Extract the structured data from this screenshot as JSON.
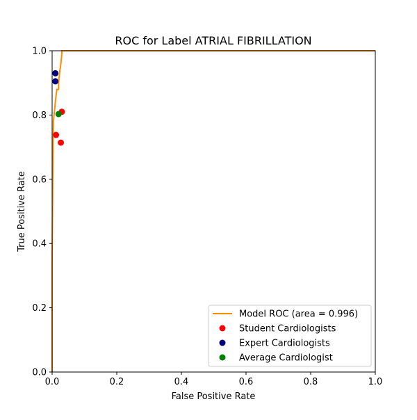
{
  "chart_data": {
    "type": "line",
    "title": "ROC for Label ATRIAL FIBRILLATION",
    "xlabel": "False Positive Rate",
    "ylabel": "True Positive Rate",
    "xlim": [
      0.0,
      1.0
    ],
    "ylim": [
      0.0,
      1.0
    ],
    "xticks": [
      "0.0",
      "0.2",
      "0.4",
      "0.6",
      "0.8",
      "1.0"
    ],
    "yticks": [
      "0.0",
      "0.2",
      "0.4",
      "0.6",
      "0.8",
      "1.0"
    ],
    "grid": false,
    "legend_position": "lower-right",
    "series": [
      {
        "name": "Model ROC (area = 0.996)",
        "kind": "line",
        "color": "#ff8c00",
        "points": [
          [
            0.0,
            0.0
          ],
          [
            0.0,
            0.35
          ],
          [
            0.002,
            0.6
          ],
          [
            0.004,
            0.78
          ],
          [
            0.006,
            0.8
          ],
          [
            0.008,
            0.82
          ],
          [
            0.01,
            0.84
          ],
          [
            0.012,
            0.86
          ],
          [
            0.015,
            0.88
          ],
          [
            0.02,
            0.88
          ],
          [
            0.02,
            0.9
          ],
          [
            0.022,
            0.92
          ],
          [
            0.024,
            0.94
          ],
          [
            0.026,
            0.95
          ],
          [
            0.028,
            0.97
          ],
          [
            0.03,
            0.99
          ],
          [
            0.03,
            1.0
          ],
          [
            1.0,
            1.0
          ]
        ]
      },
      {
        "name": "Student Cardiologists",
        "kind": "scatter",
        "color": "#ff0000",
        "points": [
          [
            0.012,
            0.738
          ],
          [
            0.03,
            0.81
          ],
          [
            0.027,
            0.714
          ]
        ]
      },
      {
        "name": "Expert Cardiologists",
        "kind": "scatter",
        "color": "#00007f",
        "points": [
          [
            0.01,
            0.93
          ],
          [
            0.01,
            0.905
          ]
        ]
      },
      {
        "name": "Average Cardiologist",
        "kind": "scatter",
        "color": "#008000",
        "points": [
          [
            0.02,
            0.803
          ]
        ]
      }
    ]
  }
}
